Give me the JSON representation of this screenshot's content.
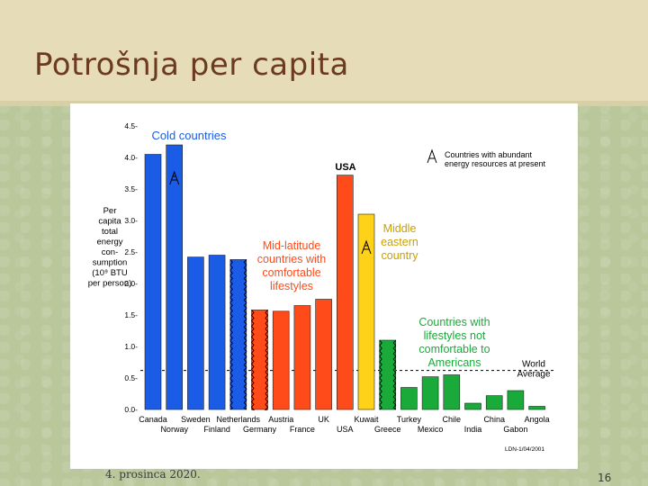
{
  "slide": {
    "title": "Potrošnja per capita",
    "date": "4. prosinca 2020.",
    "page_number": "16"
  },
  "chart_data": {
    "type": "bar",
    "ylabel": "Per capita total energy consumption (10^9 BTU per person)",
    "ylabel_lines": [
      "Per",
      "capita",
      "total",
      "energy",
      "con-",
      "sumption",
      "(10⁹ BTU",
      "per person)"
    ],
    "ylim": [
      0,
      4.5
    ],
    "yticks": [
      "0.0",
      "0.5",
      "1.0",
      "1.5",
      "2.0",
      "2.5",
      "3.0",
      "3.5",
      "4.0",
      "4.5"
    ],
    "world_average": 0.62,
    "world_average_label": [
      "World",
      "Average"
    ],
    "legend_label": [
      "Countries with abundant",
      "energy resources at present"
    ],
    "credit": "LDN-1/04/2001",
    "groups": [
      {
        "label": [
          "Cold countries"
        ],
        "color": "#1a5ce6"
      },
      {
        "label": [
          "Mid-latitude",
          "countries with",
          "comfortable",
          "lifestyles"
        ],
        "color": "#ff4a1a"
      },
      {
        "label": [
          "Middle",
          "eastern",
          "country"
        ],
        "color": "#c8a000"
      },
      {
        "label": [
          "Countries with",
          "lifestyles not",
          "comfortable to",
          "Americans"
        ],
        "color": "#1aaa3a"
      }
    ],
    "usa_label": "USA",
    "bars": [
      {
        "country": "Canada",
        "value": 4.05,
        "color": "#1a5ce6",
        "row": 0,
        "abundant": false,
        "wavy": false
      },
      {
        "country": "Norway",
        "value": 4.2,
        "color": "#1a5ce6",
        "row": 1,
        "abundant": true,
        "wavy": false
      },
      {
        "country": "Sweden",
        "value": 2.42,
        "color": "#1a5ce6",
        "row": 0,
        "abundant": false,
        "wavy": false
      },
      {
        "country": "Finland",
        "value": 2.45,
        "color": "#1a5ce6",
        "row": 1,
        "abundant": false,
        "wavy": false
      },
      {
        "country": "Netherlands",
        "value": 2.38,
        "color": "#1a5ce6",
        "row": 0,
        "abundant": false,
        "wavy": true
      },
      {
        "country": "Germany",
        "value": 1.58,
        "color": "#ff4a1a",
        "row": 1,
        "abundant": false,
        "wavy": true
      },
      {
        "country": "Austria",
        "value": 1.56,
        "color": "#ff4a1a",
        "row": 0,
        "abundant": false,
        "wavy": false
      },
      {
        "country": "France",
        "value": 1.65,
        "color": "#ff4a1a",
        "row": 1,
        "abundant": false,
        "wavy": false
      },
      {
        "country": "UK",
        "value": 1.75,
        "color": "#ff4a1a",
        "row": 0,
        "abundant": false,
        "wavy": false
      },
      {
        "country": "USA",
        "value": 3.72,
        "color": "#ff4a1a",
        "row": 1,
        "abundant": false,
        "wavy": false
      },
      {
        "country": "Kuwait",
        "value": 3.1,
        "color": "#ffd21a",
        "row": 0,
        "abundant": true,
        "wavy": false
      },
      {
        "country": "Greece",
        "value": 1.1,
        "color": "#1aaa3a",
        "row": 1,
        "abundant": false,
        "wavy": true
      },
      {
        "country": "Turkey",
        "value": 0.35,
        "color": "#1aaa3a",
        "row": 0,
        "abundant": false,
        "wavy": false
      },
      {
        "country": "Mexico",
        "value": 0.52,
        "color": "#1aaa3a",
        "row": 1,
        "abundant": false,
        "wavy": false
      },
      {
        "country": "Chile",
        "value": 0.55,
        "color": "#1aaa3a",
        "row": 0,
        "abundant": false,
        "wavy": false
      },
      {
        "country": "India",
        "value": 0.1,
        "color": "#1aaa3a",
        "row": 1,
        "abundant": false,
        "wavy": false
      },
      {
        "country": "China",
        "value": 0.22,
        "color": "#1aaa3a",
        "row": 0,
        "abundant": false,
        "wavy": false
      },
      {
        "country": "Gabon",
        "value": 0.3,
        "color": "#1aaa3a",
        "row": 1,
        "abundant": false,
        "wavy": false
      },
      {
        "country": "Angola",
        "value": 0.05,
        "color": "#1aaa3a",
        "row": 0,
        "abundant": false,
        "wavy": false
      }
    ]
  }
}
